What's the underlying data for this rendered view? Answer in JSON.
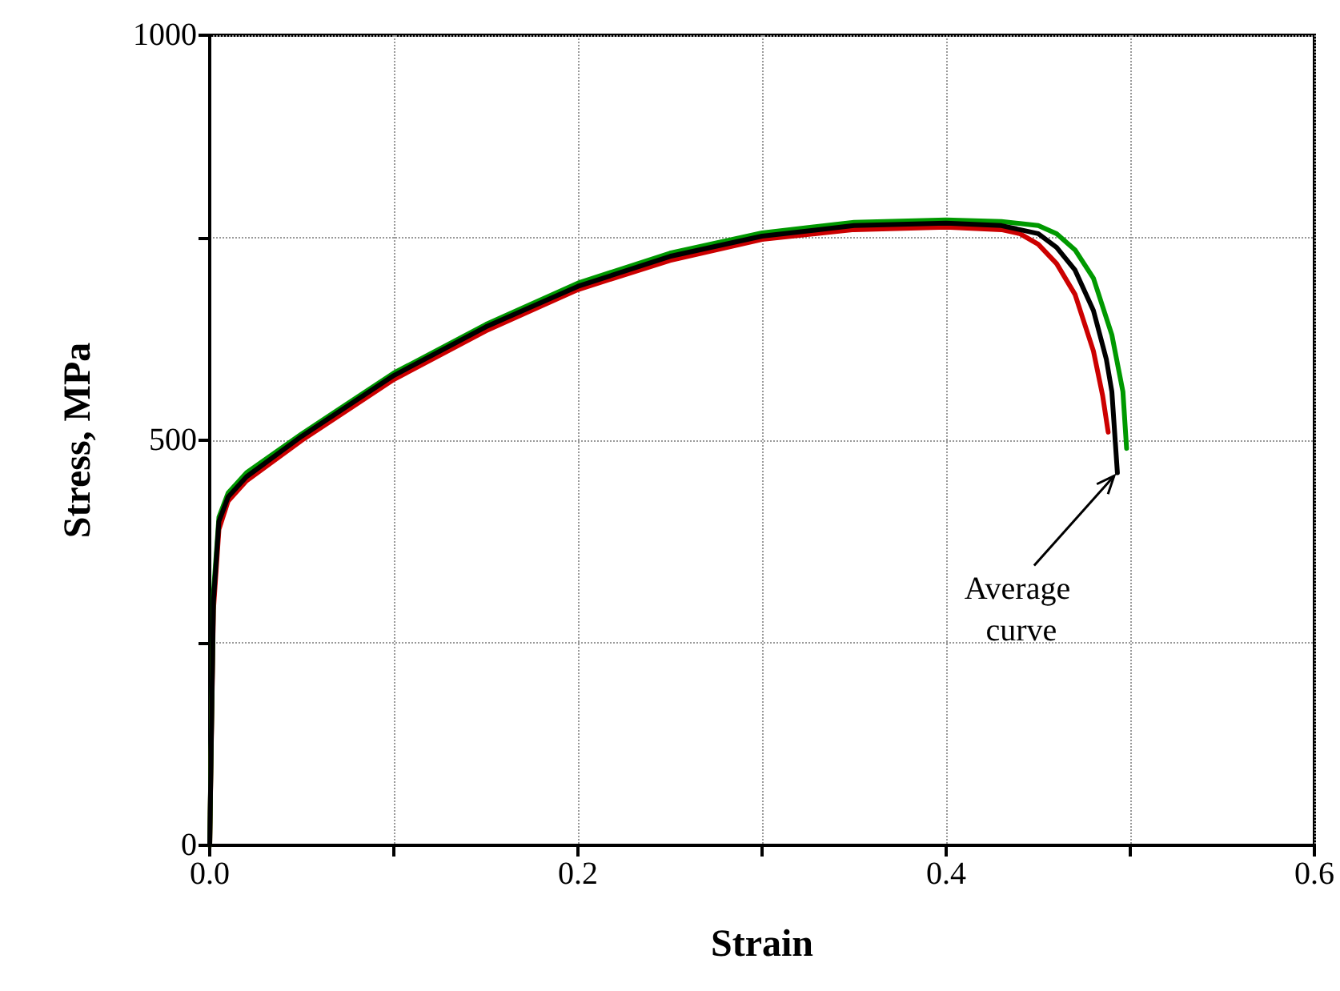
{
  "chart_data": {
    "type": "line",
    "xlabel": "Strain",
    "ylabel": "Stress, MPa",
    "xlim": [
      0,
      0.6
    ],
    "ylim": [
      0,
      1000
    ],
    "xticks": [
      {
        "value": 0,
        "label": "0.0"
      },
      {
        "value": 0.1,
        "label": null
      },
      {
        "value": 0.2,
        "label": "0.2"
      },
      {
        "value": 0.3,
        "label": null
      },
      {
        "value": 0.4,
        "label": "0.4"
      },
      {
        "value": 0.5,
        "label": null
      },
      {
        "value": 0.6,
        "label": "0.6"
      }
    ],
    "yticks": [
      0,
      {
        "value": 250,
        "label": null
      },
      500,
      {
        "value": 750,
        "label": null
      },
      1000
    ],
    "grid": true,
    "marker": "none",
    "line_style": "solid",
    "annotations": [
      {
        "text": "Average curve",
        "x": 0.493,
        "y": 460
      }
    ],
    "series": [
      {
        "color": "#cc0000",
        "x": [
          0,
          0.002,
          0.005,
          0.01,
          0.02,
          0.05,
          0.1,
          0.15,
          0.2,
          0.25,
          0.3,
          0.35,
          0.4,
          0.43,
          0.44,
          0.45,
          0.46,
          0.47,
          0.48,
          0.485,
          0.488
        ],
        "values": [
          0,
          290,
          390,
          425,
          450,
          500,
          575,
          635,
          686,
          722,
          748,
          760,
          763,
          760,
          755,
          742,
          718,
          680,
          610,
          555,
          510
        ]
      },
      {
        "color": "#009900",
        "x": [
          0,
          0.002,
          0.005,
          0.01,
          0.02,
          0.05,
          0.1,
          0.15,
          0.2,
          0.25,
          0.3,
          0.35,
          0.4,
          0.43,
          0.45,
          0.46,
          0.47,
          0.48,
          0.49,
          0.496,
          0.498
        ],
        "values": [
          0,
          310,
          405,
          435,
          460,
          508,
          583,
          643,
          694,
          731,
          756,
          769,
          772,
          770,
          765,
          755,
          735,
          700,
          630,
          560,
          490
        ]
      },
      {
        "color": "#000000",
        "x": [
          0,
          0.002,
          0.005,
          0.01,
          0.02,
          0.05,
          0.1,
          0.15,
          0.2,
          0.25,
          0.3,
          0.35,
          0.4,
          0.43,
          0.45,
          0.46,
          0.47,
          0.48,
          0.487,
          0.49,
          0.493
        ],
        "values": [
          0,
          300,
          400,
          430,
          455,
          505,
          580,
          640,
          690,
          727,
          752,
          765,
          768,
          765,
          755,
          738,
          710,
          660,
          600,
          560,
          460
        ]
      }
    ]
  }
}
